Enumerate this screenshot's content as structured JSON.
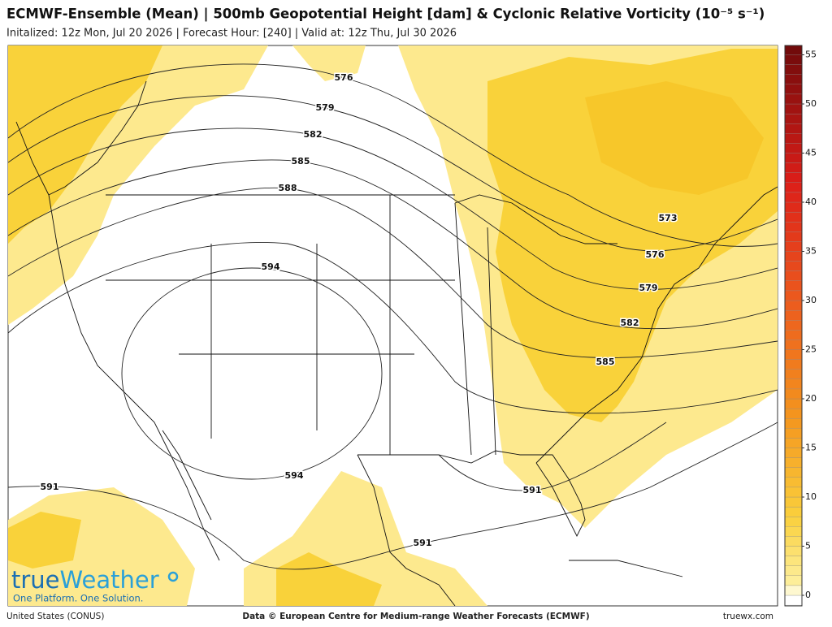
{
  "header": {
    "title": "ECMWF-Ensemble (Mean) | 500mb Geopotential Height [dam] & Cyclonic Relative Vorticity (10⁻⁵ s⁻¹)",
    "subtitle": "Initalized: 12z Mon, Jul 20 2026 | Forecast Hour: [240] | Valid at: 12z Thu, Jul 30 2026"
  },
  "map": {
    "contour_labels": [
      576,
      579,
      582,
      585,
      588,
      594,
      573,
      576,
      579,
      582,
      585,
      594,
      591,
      591,
      591
    ]
  },
  "colorbar": {
    "ticks": [
      0,
      5,
      10,
      15,
      20,
      25,
      30,
      35,
      40,
      45,
      50,
      55
    ]
  },
  "logo": {
    "name_part1": "true",
    "name_part2": "Weather",
    "tagline": "One Platform. One Solution."
  },
  "footer": {
    "region": "United States (CONUS)",
    "credit": "Data © European Centre for Medium-range Weather Forecasts (ECMWF)",
    "site": "truewx.com"
  }
}
